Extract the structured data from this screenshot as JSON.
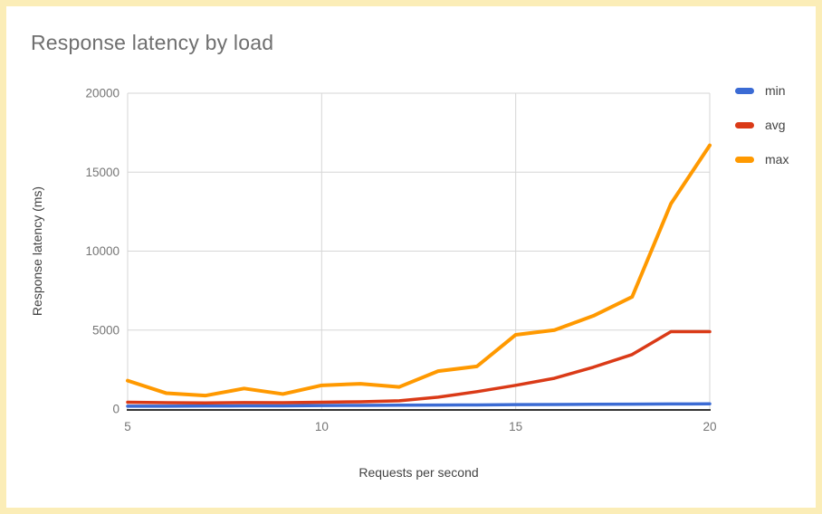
{
  "frame": {
    "border_color": "#FBEDB7",
    "background_color": "#FFFFFF"
  },
  "chart_data": {
    "type": "line",
    "title": "Response latency by load",
    "xlabel": "Requests per second",
    "ylabel": "Response latency (ms)",
    "x": [
      5,
      6,
      7,
      8,
      9,
      10,
      11,
      12,
      13,
      14,
      15,
      16,
      17,
      18,
      19,
      20
    ],
    "series": [
      {
        "name": "min",
        "color": "#3B6BD4",
        "width": 3.5,
        "values": [
          180,
          180,
          190,
          200,
          200,
          220,
          230,
          240,
          250,
          260,
          280,
          290,
          300,
          310,
          320,
          330
        ]
      },
      {
        "name": "avg",
        "color": "#DA3A17",
        "width": 3.5,
        "values": [
          430,
          400,
          390,
          410,
          400,
          430,
          460,
          520,
          750,
          1100,
          1500,
          1950,
          2650,
          3450,
          4900,
          4900
        ]
      },
      {
        "name": "max",
        "color": "#FF9900",
        "width": 4,
        "values": [
          1800,
          1000,
          850,
          1300,
          950,
          1500,
          1600,
          1400,
          2400,
          2700,
          4700,
          5000,
          5900,
          7100,
          13000,
          16700
        ]
      }
    ],
    "xlim": [
      5,
      20
    ],
    "ylim": [
      0,
      20000
    ],
    "x_ticks": [
      5,
      10,
      15,
      20
    ],
    "y_ticks": [
      0,
      5000,
      10000,
      15000,
      20000
    ],
    "grid": true,
    "legend_position": "right"
  },
  "colors": {
    "gridline": "#D6D6D6",
    "axis_line": "#333333",
    "tick_label": "#757575",
    "axis_title": "#424242",
    "chart_title": "#6F6F6F",
    "legend_text": "#424242"
  }
}
